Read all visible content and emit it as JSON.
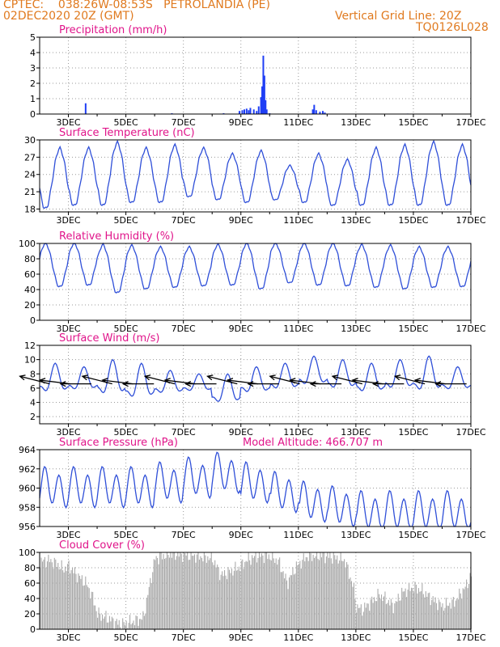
{
  "header": {
    "line1_left": "CPTEC:    038:26W-08:53S   PETROLANDIA (PE)",
    "line2_left": "02DEC2020 20Z (GMT)",
    "line1_right": "Vertical Grid Line: 20Z",
    "line2_right": "TQ0126L028"
  },
  "x_axis": {
    "labels": [
      "3DEC",
      "5DEC",
      "7DEC",
      "9DEC",
      "11DEC",
      "13DEC",
      "15DEC",
      "17DEC"
    ],
    "label_days": [
      3,
      5,
      7,
      9,
      11,
      13,
      15,
      17
    ],
    "start_day": 2.0,
    "end_day": 17.0
  },
  "chart_data": [
    {
      "type": "bar",
      "title": "Precipitation (mm/h)",
      "ylim": [
        0,
        5
      ],
      "yticks": [
        0,
        1,
        2,
        3,
        4,
        5
      ],
      "color": "#1f3ff5",
      "points": [
        [
          3.6,
          0.7
        ],
        [
          6.6,
          0.05
        ],
        [
          8.4,
          0.05
        ],
        [
          8.95,
          0.2
        ],
        [
          9.05,
          0.25
        ],
        [
          9.12,
          0.3
        ],
        [
          9.2,
          0.35
        ],
        [
          9.27,
          0.25
        ],
        [
          9.33,
          0.4
        ],
        [
          9.45,
          0.3
        ],
        [
          9.55,
          0.2
        ],
        [
          9.62,
          0.5
        ],
        [
          9.7,
          1.1
        ],
        [
          9.74,
          1.8
        ],
        [
          9.78,
          3.8
        ],
        [
          9.82,
          2.5
        ],
        [
          9.86,
          0.9
        ],
        [
          9.9,
          0.3
        ],
        [
          10.0,
          0.05
        ],
        [
          11.5,
          0.3
        ],
        [
          11.55,
          0.6
        ],
        [
          11.62,
          0.25
        ],
        [
          11.75,
          0.15
        ],
        [
          11.85,
          0.2
        ],
        [
          11.92,
          0.1
        ],
        [
          14.8,
          0.03
        ]
      ]
    },
    {
      "type": "line",
      "title": "Surface Temperature (nC)",
      "ylim": [
        17.5,
        30
      ],
      "yticks": [
        18,
        21,
        24,
        27,
        30
      ],
      "color": "#2f4fd8",
      "daily_min": [
        18,
        18.5,
        18.5,
        19,
        19,
        20,
        19.5,
        19,
        19.5,
        19,
        18.5,
        18.5,
        18.5,
        18.5,
        18.5
      ],
      "daily_max": [
        28.5,
        28.5,
        29.5,
        28.5,
        29,
        28.5,
        27.5,
        28,
        25.5,
        27.5,
        26.5,
        28.5,
        29,
        29.5,
        29,
        29
      ]
    },
    {
      "type": "line",
      "title": "Relative Humidity (%)",
      "ylim": [
        0,
        100
      ],
      "yticks": [
        0,
        20,
        40,
        60,
        80,
        100
      ],
      "color": "#2f4fd8",
      "daily_min": [
        43,
        45,
        35,
        40,
        42,
        44,
        45,
        40,
        48,
        45,
        44,
        42,
        40,
        42,
        43,
        45
      ],
      "daily_max": [
        100,
        100,
        98,
        97,
        95,
        95,
        98,
        100,
        100,
        100,
        100,
        98,
        97,
        95,
        95
      ]
    },
    {
      "type": "line",
      "title": "Surface Wind (m/s)",
      "ylim": [
        1,
        12
      ],
      "yticks": [
        2,
        4,
        6,
        8,
        10,
        12
      ],
      "color": "#2f4fd8",
      "daily_min": [
        4.5,
        5.0,
        4.0,
        3.5,
        4.5,
        5.0,
        3.0,
        4.5,
        5.0,
        5.5,
        5.0,
        4.5,
        5.0,
        4.5,
        5.0
      ],
      "daily_max": [
        9.5,
        9.0,
        10.0,
        9.5,
        8.5,
        8.0,
        8.0,
        9.0,
        9.5,
        10.5,
        10.0,
        9.5,
        10.0,
        10.5,
        9.0,
        8.5
      ],
      "arrow_count": 21,
      "arrow_y": 6.6
    },
    {
      "type": "line",
      "title": "Surface Pressure (hPa)",
      "subtitle": "Model Altitude: 466.707  m",
      "ylim": [
        956,
        964
      ],
      "yticks": [
        956,
        958,
        960,
        962,
        964
      ],
      "color": "#2f4fd8",
      "daily_base": [
        960,
        960,
        960,
        960,
        960.5,
        961,
        961.5,
        960.5,
        959.5,
        958.5,
        958,
        957.5,
        957.5,
        957.5,
        957.5
      ],
      "daily_amp": 1.8
    },
    {
      "type": "area",
      "title": "Cloud Cover (%)",
      "ylim": [
        0,
        100
      ],
      "yticks": [
        0,
        20,
        40,
        60,
        80,
        100
      ],
      "color": "#a9a9a9",
      "profile": [
        [
          2.0,
          88
        ],
        [
          2.3,
          90
        ],
        [
          2.6,
          85
        ],
        [
          2.8,
          78
        ],
        [
          3.0,
          82
        ],
        [
          3.3,
          70
        ],
        [
          3.6,
          60
        ],
        [
          3.8,
          45
        ],
        [
          4.0,
          20
        ],
        [
          4.3,
          15
        ],
        [
          4.6,
          10
        ],
        [
          4.8,
          6
        ],
        [
          5.0,
          8
        ],
        [
          5.2,
          10
        ],
        [
          5.4,
          12
        ],
        [
          5.6,
          15
        ],
        [
          5.8,
          55
        ],
        [
          6.0,
          92
        ],
        [
          6.5,
          98
        ],
        [
          7.0,
          97
        ],
        [
          7.5,
          95
        ],
        [
          8.0,
          92
        ],
        [
          8.3,
          70
        ],
        [
          8.6,
          75
        ],
        [
          8.9,
          80
        ],
        [
          9.2,
          90
        ],
        [
          9.6,
          96
        ],
        [
          10.0,
          95
        ],
        [
          10.3,
          88
        ],
        [
          10.6,
          60
        ],
        [
          10.8,
          75
        ],
        [
          11.0,
          85
        ],
        [
          11.3,
          95
        ],
        [
          11.8,
          96
        ],
        [
          12.2,
          94
        ],
        [
          12.6,
          90
        ],
        [
          12.9,
          55
        ],
        [
          13.0,
          30
        ],
        [
          13.2,
          25
        ],
        [
          13.5,
          35
        ],
        [
          13.8,
          45
        ],
        [
          14.0,
          40
        ],
        [
          14.3,
          30
        ],
        [
          14.6,
          48
        ],
        [
          15.0,
          55
        ],
        [
          15.3,
          50
        ],
        [
          15.6,
          40
        ],
        [
          16.0,
          30
        ],
        [
          16.4,
          35
        ],
        [
          16.8,
          55
        ],
        [
          17.0,
          70
        ]
      ]
    }
  ]
}
